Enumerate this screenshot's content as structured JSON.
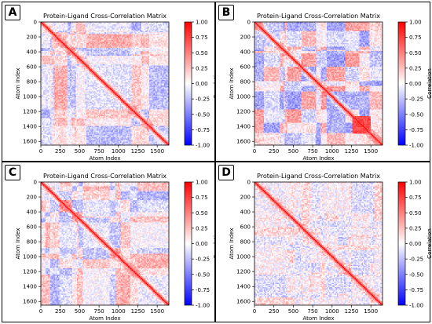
{
  "figure": {
    "panels": [
      {
        "label": "A",
        "seed": 11,
        "style": "dense"
      },
      {
        "label": "B",
        "seed": 23,
        "style": "blocks"
      },
      {
        "label": "C",
        "seed": 37,
        "style": "dense"
      },
      {
        "label": "D",
        "seed": 51,
        "style": "sparse"
      }
    ]
  },
  "chart_data": [
    {
      "type": "heatmap",
      "title": "Protein-Ligand Cross-Correlation Matrix",
      "xlabel": "Atom Index",
      "ylabel": "Atom Index",
      "x_ticks": [
        0,
        250,
        500,
        750,
        1000,
        1250,
        1500
      ],
      "y_ticks": [
        0,
        200,
        400,
        600,
        800,
        1000,
        1200,
        1400,
        1600
      ],
      "xlim": [
        0,
        1650
      ],
      "ylim": [
        1650,
        0
      ],
      "colorbar": {
        "label": "Correlation",
        "ticks": [
          "1.00",
          "0.75",
          "0.50",
          "0.25",
          "0.00",
          "-0.25",
          "-0.50",
          "-0.75",
          "-1.00"
        ],
        "range": [
          -1,
          1
        ],
        "colors": [
          "#0000ff",
          "#ffffff",
          "#ff0000"
        ]
      }
    }
  ]
}
